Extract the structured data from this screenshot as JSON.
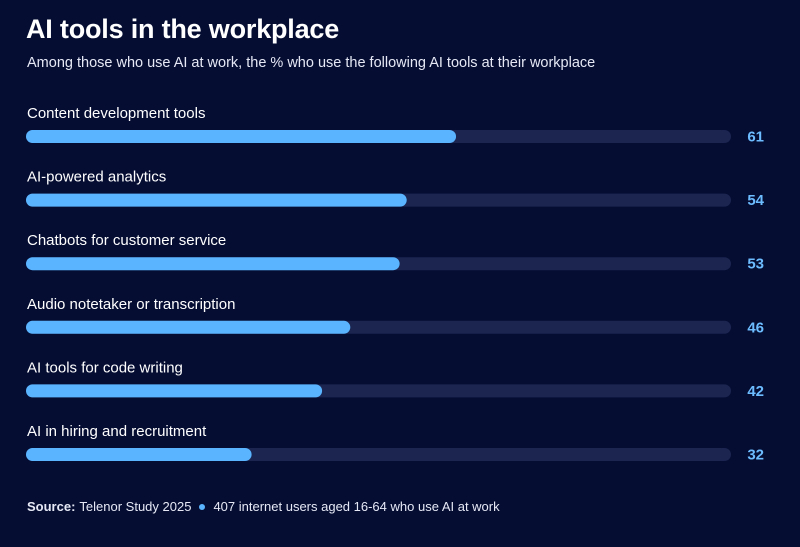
{
  "title": "AI tools in the workplace",
  "subtitle": "Among those who use AI at work, the % who use the following AI tools at their workplace",
  "colors": {
    "background": "#050d33",
    "bar_fill": "#5ab4ff",
    "bar_track": "#1b2550",
    "value_text": "#6cbcff"
  },
  "chart_data": {
    "type": "bar",
    "orientation": "horizontal",
    "categories": [
      "Content development tools",
      "AI-powered analytics",
      "Chatbots for customer service",
      "Audio notetaker or transcription",
      "AI tools for code writing",
      "AI in hiring and recruitment"
    ],
    "values": [
      61,
      54,
      53,
      46,
      42,
      32
    ],
    "xlim": [
      0,
      100
    ],
    "grid": false,
    "legend": "none"
  },
  "footer": {
    "source_label": "Source:",
    "source_text": "Telenor Study 2025",
    "note": "407 internet users aged 16-64 who use AI at work"
  }
}
